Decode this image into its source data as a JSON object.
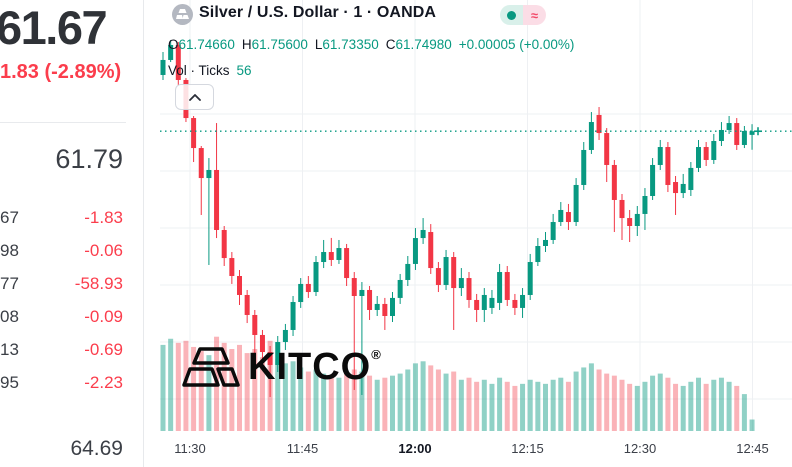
{
  "left_panel": {
    "price": "61.67",
    "change": "1.83 (-2.89%)",
    "bid": "61.79",
    "rows": [
      {
        "value": "67",
        "change": "-1.83"
      },
      {
        "value": "98",
        "change": "-0.06"
      },
      {
        "value": "77",
        "change": "-58.93"
      },
      {
        "value": "08",
        "change": "-0.09"
      },
      {
        "value": "13",
        "change": "-0.69"
      },
      {
        "value": "95",
        "change": "-2.23"
      }
    ],
    "low": "64.69"
  },
  "chart": {
    "title": "Silver / U.S. Dollar · 1 · OANDA",
    "delay_icon": "≈",
    "ohlc": {
      "o_label": "O",
      "o": "61.74660",
      "h_label": "H",
      "h": "61.75600",
      "l_label": "L",
      "l": "61.73350",
      "c_label": "C",
      "c": "61.74980",
      "change": "+0.00005 (+0.00%)"
    },
    "volume_label": "Vol · Ticks",
    "volume_value": "56",
    "watermark": "KITCO",
    "watermark_reg": "®"
  },
  "colors": {
    "up": "#089981",
    "down": "#f23645",
    "volume_up": "rgba(8,153,129,0.45)",
    "volume_down": "rgba(242,54,69,0.38)",
    "price_line": "#089981",
    "grid": "#eef0f3",
    "change_red": "#fb3d4c"
  },
  "chart_data": {
    "type": "candlestick+volume",
    "interval": "1 minute",
    "time_ticks": [
      "11:30",
      "11:45",
      "12:00",
      "12:15",
      "12:30",
      "12:45"
    ],
    "last_price_line": 61.7498,
    "last_volume_ticks": 56,
    "candles_ohlcv": [
      [
        61.7993,
        61.8195,
        61.7949,
        61.8125,
        420
      ],
      [
        61.8125,
        61.8301,
        61.8107,
        61.8257,
        450
      ],
      [
        61.8257,
        61.8283,
        61.7905,
        61.7949,
        430
      ],
      [
        61.7949,
        61.7966,
        61.7579,
        61.7614,
        440
      ],
      [
        61.7614,
        61.7632,
        61.7227,
        61.735,
        410
      ],
      [
        61.735,
        61.7368,
        61.6761,
        61.7086,
        390
      ],
      [
        61.7086,
        61.7262,
        61.6321,
        61.7157,
        370
      ],
      [
        61.7157,
        61.757,
        61.6558,
        61.6629,
        460
      ],
      [
        61.6629,
        61.6664,
        61.6312,
        61.6382,
        430
      ],
      [
        61.6382,
        61.6435,
        61.6154,
        61.6224,
        400
      ],
      [
        61.6224,
        61.6277,
        61.5969,
        61.6057,
        420
      ],
      [
        61.6057,
        61.6101,
        61.581,
        61.5881,
        380
      ],
      [
        61.5881,
        61.5925,
        61.5397,
        61.5705,
        400
      ],
      [
        61.5705,
        61.5749,
        61.5467,
        61.5555,
        360
      ],
      [
        61.5555,
        61.5608,
        61.5159,
        61.5441,
        440
      ],
      [
        61.5441,
        61.5696,
        61.5379,
        61.5643,
        350
      ],
      [
        61.5643,
        61.5802,
        61.5573,
        61.5749,
        330
      ],
      [
        61.5749,
        61.6048,
        61.5696,
        61.5995,
        340
      ],
      [
        61.5995,
        61.6206,
        61.5943,
        61.6154,
        310
      ],
      [
        61.6154,
        61.6224,
        61.6031,
        61.6083,
        290
      ],
      [
        61.6083,
        61.64,
        61.6048,
        61.6347,
        300
      ],
      [
        61.6347,
        61.6541,
        61.6294,
        61.6435,
        280
      ],
      [
        61.6435,
        61.6559,
        61.6312,
        61.6365,
        270
      ],
      [
        61.6365,
        61.6541,
        61.633,
        61.647,
        260
      ],
      [
        61.647,
        61.6506,
        61.6136,
        61.6206,
        280
      ],
      [
        61.6206,
        61.6259,
        61.5221,
        61.6048,
        300
      ],
      [
        61.6048,
        61.6171,
        61.5177,
        61.6101,
        290
      ],
      [
        61.6101,
        61.6136,
        61.5837,
        61.5925,
        270
      ],
      [
        61.5925,
        61.6048,
        61.5872,
        61.5978,
        250
      ],
      [
        61.5978,
        61.6031,
        61.5749,
        61.5872,
        260
      ],
      [
        61.5872,
        61.6083,
        61.5819,
        61.6031,
        270
      ],
      [
        61.6031,
        61.6242,
        61.5978,
        61.6189,
        280
      ],
      [
        61.6189,
        61.64,
        61.6136,
        61.633,
        300
      ],
      [
        61.633,
        61.6646,
        61.6277,
        61.6558,
        330
      ],
      [
        61.6558,
        61.6734,
        61.6506,
        61.6629,
        340
      ],
      [
        61.6611,
        61.6681,
        61.6242,
        61.6294,
        320
      ],
      [
        61.6294,
        61.6347,
        61.6083,
        61.6145,
        300
      ],
      [
        61.6145,
        61.6453,
        61.6101,
        61.6391,
        280
      ],
      [
        61.6391,
        61.6435,
        61.5749,
        61.6118,
        290
      ],
      [
        61.6118,
        61.6294,
        61.6048,
        61.6206,
        250
      ],
      [
        61.6206,
        61.6259,
        61.5943,
        61.6013,
        260
      ],
      [
        61.6013,
        61.6066,
        61.5819,
        61.5925,
        240
      ],
      [
        61.5925,
        61.6118,
        61.5819,
        61.6057,
        250
      ],
      [
        61.5943,
        61.6101,
        61.589,
        61.6031,
        230
      ],
      [
        61.5987,
        61.633,
        61.5925,
        61.6259,
        260
      ],
      [
        61.6259,
        61.6312,
        61.596,
        61.6013,
        240
      ],
      [
        61.6013,
        61.6066,
        61.5881,
        61.5943,
        220
      ],
      [
        61.5943,
        61.6118,
        61.5855,
        61.6057,
        230
      ],
      [
        61.6057,
        61.6418,
        61.6013,
        61.6347,
        250
      ],
      [
        61.6347,
        61.6558,
        61.6312,
        61.6488,
        240
      ],
      [
        61.6488,
        61.6611,
        61.6435,
        61.6541,
        230
      ],
      [
        61.6541,
        61.677,
        61.6506,
        61.6699,
        250
      ],
      [
        61.6699,
        61.6875,
        61.6664,
        61.6805,
        260
      ],
      [
        61.6787,
        61.6858,
        61.6629,
        61.6699,
        240
      ],
      [
        61.6699,
        61.7086,
        61.6664,
        61.7025,
        290
      ],
      [
        61.7025,
        61.7403,
        61.6981,
        61.7333,
        310
      ],
      [
        61.7333,
        61.7667,
        61.7298,
        61.7579,
        330
      ],
      [
        61.7641,
        61.7711,
        61.7421,
        61.7482,
        300
      ],
      [
        61.7482,
        61.7526,
        61.7051,
        61.7201,
        280
      ],
      [
        61.7201,
        61.7245,
        61.6611,
        61.6893,
        270
      ],
      [
        61.6893,
        61.6946,
        61.6541,
        61.6734,
        250
      ],
      [
        61.6734,
        61.6805,
        61.6523,
        61.6664,
        230
      ],
      [
        61.6664,
        61.684,
        61.6576,
        61.677,
        220
      ],
      [
        61.677,
        61.6998,
        61.6629,
        61.6928,
        240
      ],
      [
        61.6928,
        61.7262,
        61.6893,
        61.7201,
        270
      ],
      [
        61.7201,
        61.7421,
        61.7157,
        61.7359,
        280
      ],
      [
        61.7359,
        61.7403,
        61.6963,
        61.7025,
        260
      ],
      [
        61.7051,
        61.7104,
        61.6761,
        61.6954,
        230
      ],
      [
        61.6954,
        61.7122,
        61.691,
        61.7034,
        220
      ],
      [
        61.6981,
        61.7227,
        61.6928,
        61.7175,
        240
      ],
      [
        61.7175,
        61.7421,
        61.7139,
        61.7359,
        260
      ],
      [
        61.7359,
        61.7403,
        61.7192,
        61.7245,
        230
      ],
      [
        61.7245,
        61.7474,
        61.721,
        61.7412,
        250
      ],
      [
        61.7412,
        61.7579,
        61.7368,
        61.7509,
        260
      ],
      [
        61.7509,
        61.7632,
        61.7474,
        61.757,
        240
      ],
      [
        61.757,
        61.7614,
        61.7333,
        61.7377,
        220
      ],
      [
        61.7377,
        61.7544,
        61.735,
        61.75,
        180
      ],
      [
        61.7466,
        61.756,
        61.7335,
        61.7498,
        56
      ]
    ]
  }
}
